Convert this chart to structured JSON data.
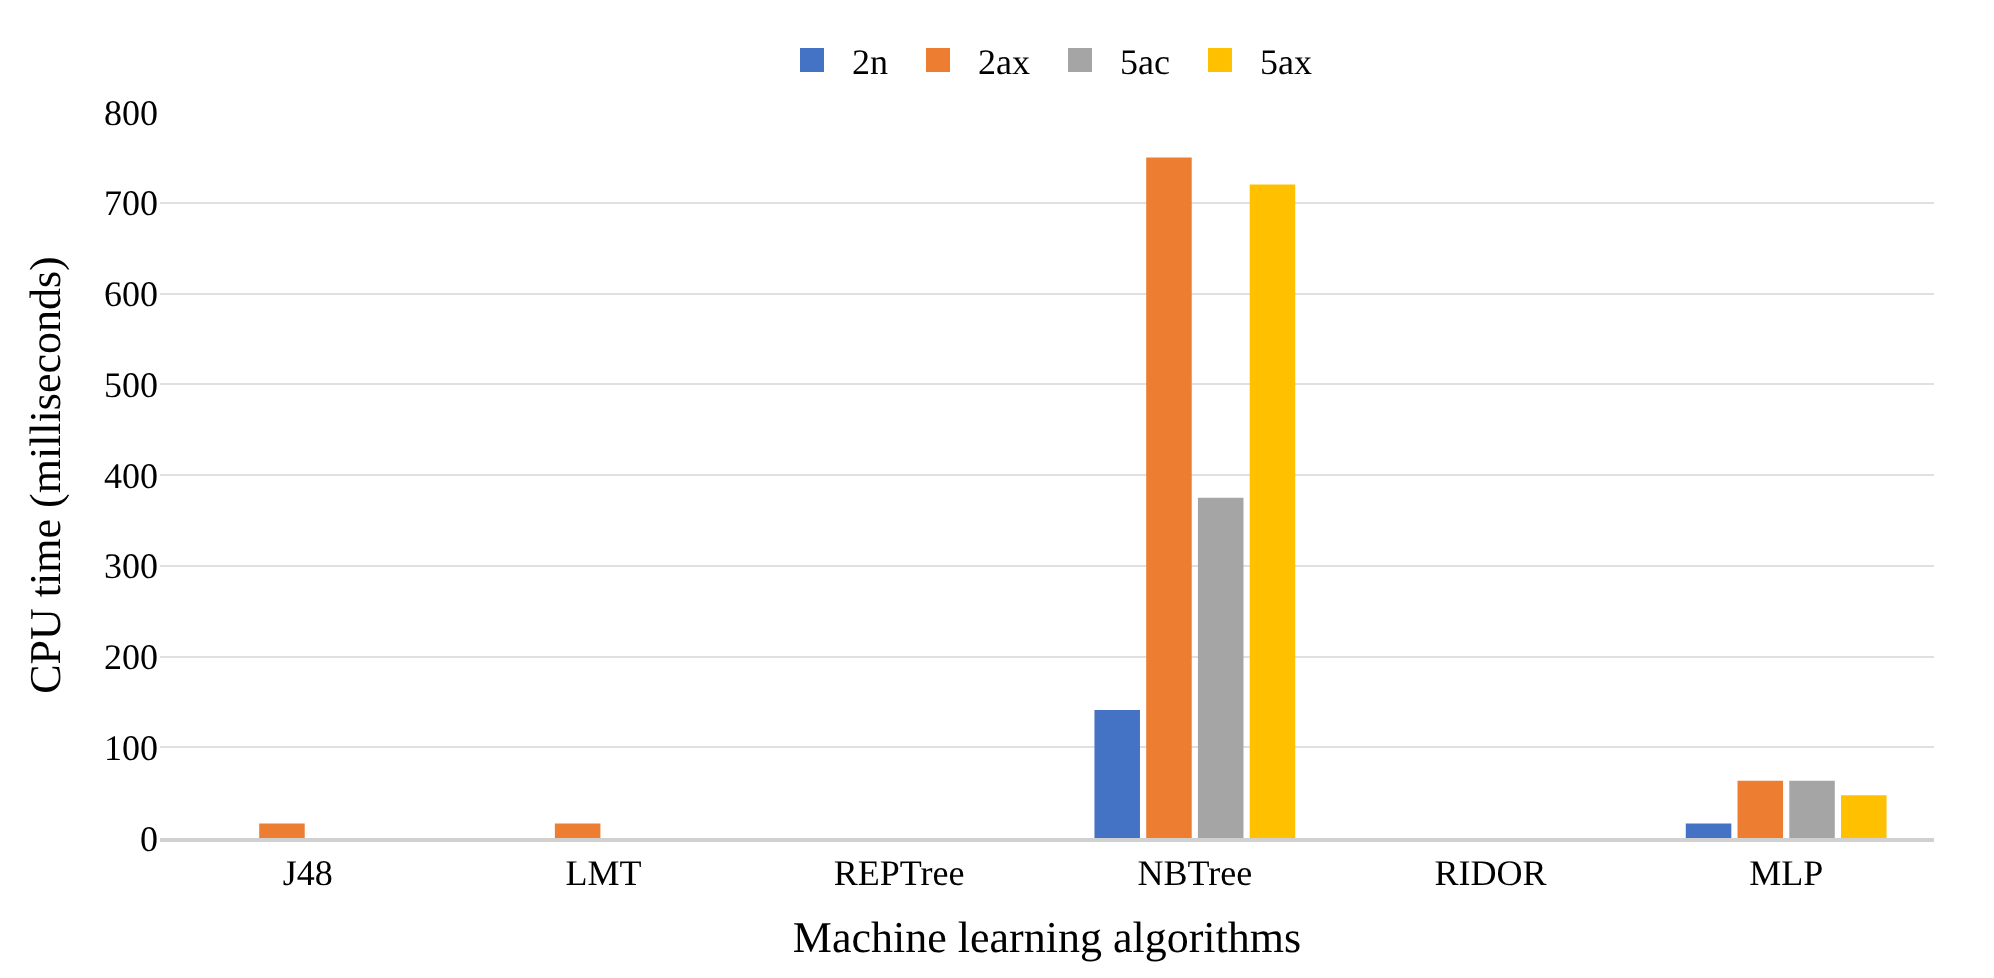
{
  "chart_data": {
    "type": "bar",
    "xlabel": "Machine learning algorithms",
    "ylabel": "CPU time (milliseconds)",
    "categories": [
      "J48",
      "LMT",
      "REPTree",
      "NBTree",
      "RIDOR",
      "MLP"
    ],
    "series": [
      {
        "name": "2n",
        "color": "#4472c4",
        "values": [
          0,
          0,
          0,
          141,
          0,
          16
        ]
      },
      {
        "name": "2ax",
        "color": "#ed7d31",
        "values": [
          16,
          16,
          0,
          750,
          0,
          63
        ]
      },
      {
        "name": "5ac",
        "color": "#a5a5a5",
        "values": [
          0,
          0,
          0,
          375,
          0,
          63
        ]
      },
      {
        "name": "5ax",
        "color": "#ffc000",
        "values": [
          0,
          0,
          0,
          720,
          0,
          47
        ]
      }
    ],
    "ylim": [
      0,
      800
    ],
    "yticks": [
      0,
      100,
      200,
      300,
      400,
      500,
      600,
      700,
      800
    ],
    "grid": "y",
    "legend": "top"
  }
}
